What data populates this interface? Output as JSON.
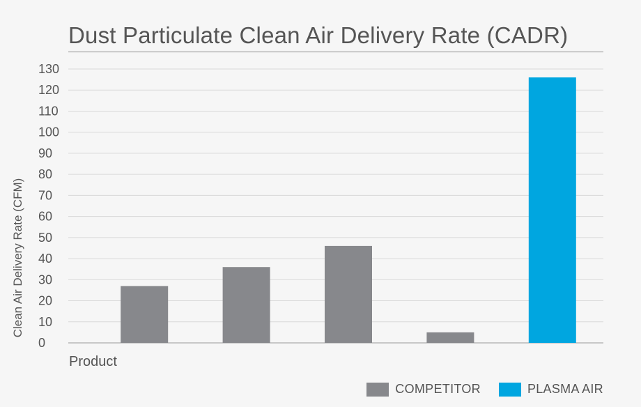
{
  "chart_data": {
    "type": "bar",
    "title": "Dust Particulate Clean Air Delivery Rate (CADR)",
    "xlabel": "Product",
    "ylabel": "Clean Air Delivery Rate (CFM)",
    "ylim": [
      0,
      130
    ],
    "yticks": [
      0,
      10,
      20,
      30,
      40,
      50,
      60,
      70,
      80,
      90,
      100,
      110,
      120,
      130
    ],
    "ytick_labels": [
      "0",
      "10",
      "20",
      "30",
      "40",
      "50",
      "60",
      "70",
      "80",
      "90",
      "100",
      "110",
      "120",
      "130"
    ],
    "grid": true,
    "categories": [
      "",
      "",
      "",
      "",
      ""
    ],
    "values": [
      27,
      36,
      46,
      5,
      126
    ],
    "bar_series": [
      "COMPETITOR",
      "COMPETITOR",
      "COMPETITOR",
      "COMPETITOR",
      "PLASMA AIR"
    ],
    "legend": [
      {
        "name": "COMPETITOR",
        "color": "#87888c"
      },
      {
        "name": "PLASMA AIR",
        "color": "#00a6e0"
      }
    ],
    "legend_position": "bottom-right"
  }
}
